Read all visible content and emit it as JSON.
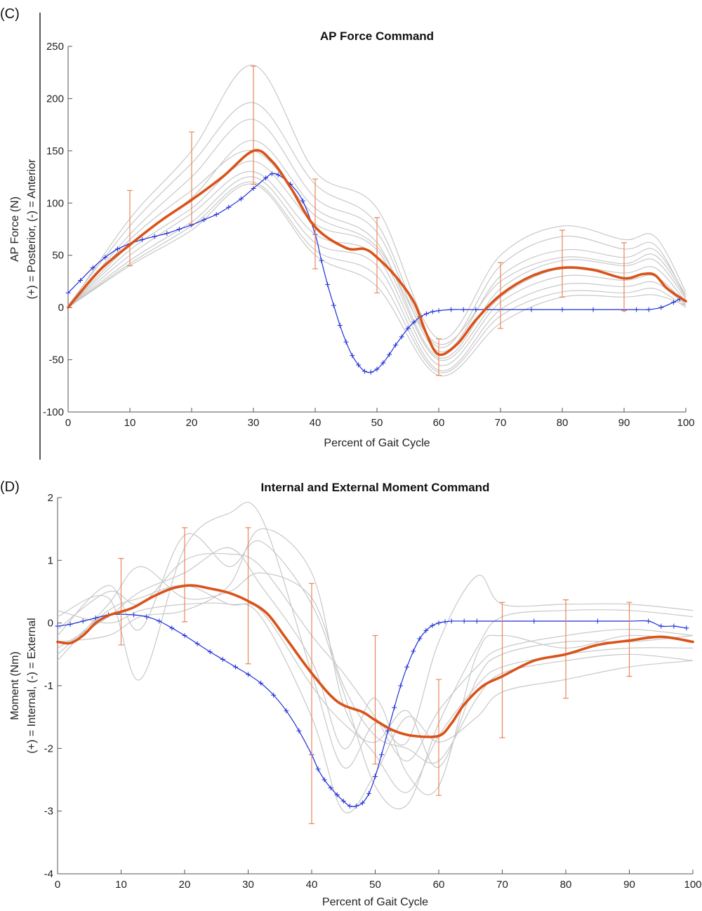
{
  "chart_data": [
    {
      "panel_label": "(C)",
      "type": "line",
      "title": "AP Force Command",
      "xlabel": "Percent of Gait Cycle",
      "ylabel_lines": [
        "AP Force (N)",
        "(+) = Posterior, (-) = Anterior"
      ],
      "xlim": [
        0,
        100
      ],
      "ylim": [
        -100,
        250
      ],
      "xticks": [
        0,
        10,
        20,
        30,
        40,
        50,
        60,
        70,
        80,
        90,
        100
      ],
      "yticks": [
        -100,
        -50,
        0,
        50,
        100,
        150,
        200,
        250
      ],
      "grid": false,
      "legend": "none",
      "colors": {
        "individual": "#c8c8c8",
        "mean": "#d95319",
        "error": "#e8875a",
        "command": "#1f2fd6"
      },
      "mean": {
        "x": [
          0,
          5,
          10,
          15,
          20,
          25,
          30,
          33,
          36,
          40,
          45,
          48,
          50,
          53,
          56,
          58,
          60,
          63,
          66,
          70,
          75,
          80,
          85,
          90,
          93,
          95,
          97,
          100
        ],
        "y": [
          0,
          35,
          60,
          83,
          103,
          125,
          150,
          140,
          115,
          77,
          57,
          56,
          48,
          30,
          5,
          -25,
          -45,
          -35,
          -12,
          12,
          30,
          38,
          36,
          28,
          32,
          31,
          18,
          6
        ]
      },
      "error_bars": {
        "x": [
          10,
          20,
          30,
          40,
          50,
          60,
          70,
          80,
          90
        ],
        "low": [
          40,
          80,
          118,
          37,
          14,
          -65,
          -20,
          10,
          -3
        ],
        "high": [
          112,
          168,
          231,
          123,
          86,
          -30,
          43,
          74,
          62
        ]
      },
      "command": {
        "x": [
          0,
          2,
          4,
          6,
          8,
          10,
          12,
          14,
          16,
          18,
          20,
          22,
          24,
          26,
          28,
          30,
          32,
          33,
          34,
          36,
          38,
          40,
          41,
          42,
          43,
          44,
          45,
          46,
          47,
          48,
          49,
          50,
          51,
          52,
          53,
          54,
          55,
          56,
          57,
          58,
          59,
          60,
          62,
          64,
          66,
          70,
          75,
          80,
          85,
          90,
          92,
          94,
          96,
          98,
          99
        ],
        "y": [
          14,
          26,
          38,
          48,
          56,
          61,
          65,
          68,
          71,
          75,
          79,
          84,
          89,
          96,
          104,
          114,
          124,
          128,
          127,
          118,
          102,
          70,
          45,
          22,
          2,
          -17,
          -33,
          -46,
          -55,
          -61,
          -62,
          -59,
          -53,
          -45,
          -36,
          -28,
          -20,
          -14,
          -9,
          -6,
          -4,
          -3,
          -2,
          -2,
          -2,
          -2,
          -2,
          -2,
          -2,
          -2,
          -2,
          -2,
          0,
          5,
          8
        ]
      },
      "individuals": [
        {
          "x": [
            0,
            10,
            20,
            30,
            40,
            50,
            60,
            70,
            80,
            90,
            95,
            100
          ],
          "y": [
            0,
            85,
            150,
            232,
            130,
            95,
            -30,
            50,
            78,
            65,
            68,
            15
          ]
        },
        {
          "x": [
            0,
            10,
            20,
            30,
            40,
            50,
            60,
            70,
            80,
            90,
            95,
            100
          ],
          "y": [
            2,
            78,
            138,
            196,
            118,
            80,
            -38,
            40,
            68,
            56,
            60,
            10
          ]
        },
        {
          "x": [
            0,
            10,
            20,
            30,
            40,
            50,
            60,
            70,
            80,
            90,
            95,
            100
          ],
          "y": [
            0,
            70,
            125,
            180,
            105,
            72,
            -42,
            30,
            55,
            48,
            55,
            12
          ]
        },
        {
          "x": [
            0,
            10,
            20,
            30,
            40,
            50,
            60,
            70,
            80,
            90,
            95,
            100
          ],
          "y": [
            0,
            60,
            105,
            160,
            95,
            62,
            -48,
            18,
            45,
            40,
            45,
            8
          ]
        },
        {
          "x": [
            0,
            10,
            20,
            30,
            40,
            50,
            60,
            70,
            80,
            90,
            95,
            100
          ],
          "y": [
            0,
            55,
            95,
            140,
            80,
            55,
            -50,
            10,
            38,
            33,
            38,
            5
          ]
        },
        {
          "x": [
            0,
            10,
            20,
            30,
            40,
            50,
            60,
            70,
            80,
            90,
            95,
            100
          ],
          "y": [
            0,
            50,
            90,
            130,
            70,
            48,
            -55,
            5,
            30,
            26,
            30,
            3
          ]
        },
        {
          "x": [
            0,
            10,
            20,
            30,
            40,
            50,
            60,
            70,
            80,
            90,
            95,
            100
          ],
          "y": [
            0,
            45,
            82,
            125,
            62,
            40,
            -60,
            -2,
            22,
            20,
            24,
            2
          ]
        },
        {
          "x": [
            0,
            10,
            20,
            30,
            40,
            50,
            60,
            70,
            80,
            90,
            95,
            100
          ],
          "y": [
            0,
            42,
            78,
            120,
            55,
            30,
            -62,
            -8,
            15,
            14,
            18,
            0
          ]
        },
        {
          "x": [
            0,
            10,
            20,
            30,
            40,
            50,
            60,
            70,
            80,
            90,
            95,
            100
          ],
          "y": [
            0,
            40,
            74,
            118,
            50,
            20,
            -65,
            -15,
            10,
            10,
            12,
            2
          ]
        },
        {
          "x": [
            0,
            10,
            20,
            30,
            40,
            50,
            60,
            70,
            80,
            90,
            95,
            100
          ],
          "y": [
            0,
            65,
            112,
            150,
            88,
            58,
            -35,
            25,
            48,
            42,
            50,
            10
          ]
        }
      ]
    },
    {
      "panel_label": "(D)",
      "type": "line",
      "title": "Internal and External Moment Command",
      "xlabel": "Percent of Gait Cycle",
      "ylabel_lines": [
        "Moment (Nm)",
        "(+) = Internal, (-) = External"
      ],
      "xlim": [
        0,
        100
      ],
      "ylim": [
        -4,
        2
      ],
      "xticks": [
        0,
        10,
        20,
        30,
        40,
        50,
        60,
        70,
        80,
        90,
        100
      ],
      "yticks": [
        -4,
        -3,
        -2,
        -1,
        0,
        1,
        2
      ],
      "grid": false,
      "legend": "none",
      "colors": {
        "individual": "#c8c8c8",
        "mean": "#d95319",
        "error": "#e8875a",
        "command": "#1f2fd6"
      },
      "mean": {
        "x": [
          0,
          2,
          4,
          6,
          8,
          10,
          12,
          15,
          18,
          21,
          24,
          27,
          30,
          33,
          36,
          40,
          44,
          48,
          50,
          53,
          56,
          60,
          62,
          64,
          67,
          70,
          75,
          80,
          85,
          90,
          95,
          100
        ],
        "y": [
          -0.3,
          -0.32,
          -0.2,
          0.0,
          0.12,
          0.18,
          0.25,
          0.42,
          0.55,
          0.6,
          0.55,
          0.48,
          0.35,
          0.15,
          -0.25,
          -0.8,
          -1.25,
          -1.42,
          -1.55,
          -1.72,
          -1.8,
          -1.8,
          -1.6,
          -1.3,
          -1.0,
          -0.85,
          -0.6,
          -0.5,
          -0.35,
          -0.28,
          -0.22,
          -0.3
        ]
      },
      "error_bars": {
        "x": [
          10,
          20,
          30,
          40,
          50,
          60,
          70,
          80,
          90
        ],
        "low": [
          -0.35,
          0.02,
          -0.65,
          -3.2,
          -2.25,
          -2.75,
          -1.83,
          -1.2,
          -0.85
        ],
        "high": [
          1.03,
          1.52,
          1.52,
          0.63,
          -0.2,
          -0.9,
          0.33,
          0.37,
          0.33
        ]
      },
      "command": {
        "x": [
          0,
          2,
          4,
          6,
          8,
          10,
          12,
          14,
          16,
          18,
          20,
          22,
          24,
          26,
          28,
          30,
          32,
          34,
          36,
          38,
          40,
          41,
          42,
          43,
          44,
          45,
          46,
          47,
          48,
          49,
          50,
          51,
          52,
          53,
          54,
          55,
          56,
          57,
          58,
          59,
          60,
          61,
          62,
          64,
          66,
          70,
          75,
          80,
          85,
          90,
          93,
          95,
          97,
          99
        ],
        "y": [
          -0.05,
          -0.02,
          0.03,
          0.08,
          0.13,
          0.14,
          0.13,
          0.1,
          0.03,
          -0.08,
          -0.2,
          -0.33,
          -0.46,
          -0.58,
          -0.7,
          -0.82,
          -0.96,
          -1.15,
          -1.4,
          -1.72,
          -2.1,
          -2.33,
          -2.5,
          -2.63,
          -2.74,
          -2.84,
          -2.92,
          -2.92,
          -2.87,
          -2.72,
          -2.45,
          -2.1,
          -1.72,
          -1.35,
          -1.0,
          -0.7,
          -0.45,
          -0.25,
          -0.12,
          -0.04,
          0.0,
          0.02,
          0.03,
          0.03,
          0.03,
          0.03,
          0.03,
          0.03,
          0.03,
          0.03,
          0.03,
          -0.05,
          -0.05,
          -0.08
        ]
      },
      "individuals": [
        {
          "x": [
            0,
            8,
            13,
            20,
            27,
            32,
            40,
            45,
            50,
            55,
            60,
            66,
            70,
            80,
            90,
            100
          ],
          "y": [
            0.1,
            0.4,
            -0.9,
            1.2,
            1.75,
            1.7,
            -0.8,
            -2.3,
            -1.6,
            -1.9,
            -0.3,
            0.75,
            0.3,
            0.3,
            0.3,
            0.2
          ]
        },
        {
          "x": [
            0,
            8,
            13,
            20,
            27,
            32,
            40,
            45,
            50,
            55,
            60,
            66,
            70,
            80,
            90,
            100
          ],
          "y": [
            -0.2,
            0.6,
            -0.1,
            1.4,
            0.9,
            1.3,
            0.3,
            -1.1,
            -2.6,
            -2.9,
            -1.6,
            -0.4,
            0.1,
            0.2,
            0.2,
            0.1
          ]
        },
        {
          "x": [
            0,
            8,
            13,
            20,
            27,
            32,
            40,
            45,
            50,
            55,
            60,
            66,
            70,
            80,
            90,
            100
          ],
          "y": [
            -0.4,
            0.1,
            0.5,
            0.8,
            1.2,
            0.6,
            -0.6,
            -2.0,
            -1.2,
            -2.4,
            -2.6,
            -0.5,
            -0.2,
            -0.4,
            -0.2,
            -0.3
          ]
        },
        {
          "x": [
            0,
            8,
            13,
            20,
            27,
            32,
            40,
            45,
            50,
            55,
            60,
            66,
            70,
            80,
            90,
            100
          ],
          "y": [
            -0.6,
            0.3,
            0.9,
            0.4,
            0.5,
            0.8,
            0.4,
            -1.0,
            -1.8,
            -2.0,
            -2.2,
            -1.2,
            -0.8,
            -0.6,
            -0.5,
            -0.6
          ]
        },
        {
          "x": [
            0,
            8,
            13,
            20,
            27,
            32,
            40,
            45,
            50,
            55,
            60,
            66,
            70,
            80,
            90,
            100
          ],
          "y": [
            0.2,
            0.0,
            0.2,
            0.3,
            0.3,
            0.1,
            -1.5,
            -3.0,
            -2.4,
            -1.5,
            -1.9,
            -1.5,
            -1.1,
            -0.9,
            -0.7,
            -0.6
          ]
        },
        {
          "x": [
            0,
            8,
            13,
            20,
            27,
            32,
            40,
            45,
            50,
            55,
            60,
            66,
            70,
            80,
            90,
            100
          ],
          "y": [
            -0.5,
            0.2,
            0.4,
            0.6,
            0.3,
            0.2,
            -1.0,
            -1.6,
            -1.9,
            -1.4,
            -2.3,
            -0.9,
            -0.5,
            -0.3,
            -0.3,
            -0.2
          ]
        },
        {
          "x": [
            0,
            8,
            13,
            20,
            27,
            32,
            40,
            45,
            50,
            55,
            60,
            66,
            70,
            80,
            90,
            100
          ],
          "y": [
            -0.1,
            0.5,
            0.3,
            1.0,
            1.1,
            0.9,
            -0.2,
            -0.8,
            -1.5,
            -2.2,
            -1.4,
            -0.7,
            -0.4,
            -0.2,
            -0.1,
            -0.2
          ]
        },
        {
          "x": [
            0,
            8,
            13,
            20,
            27,
            32,
            40,
            45,
            50,
            55,
            60,
            66,
            70,
            80,
            90,
            100
          ],
          "y": [
            -0.3,
            -0.2,
            0.1,
            0.2,
            0.6,
            1.5,
            0.8,
            -1.3,
            -2.1,
            -2.7,
            -1.8,
            -1.0,
            -0.7,
            -0.5,
            -0.4,
            -0.4
          ]
        }
      ]
    }
  ]
}
